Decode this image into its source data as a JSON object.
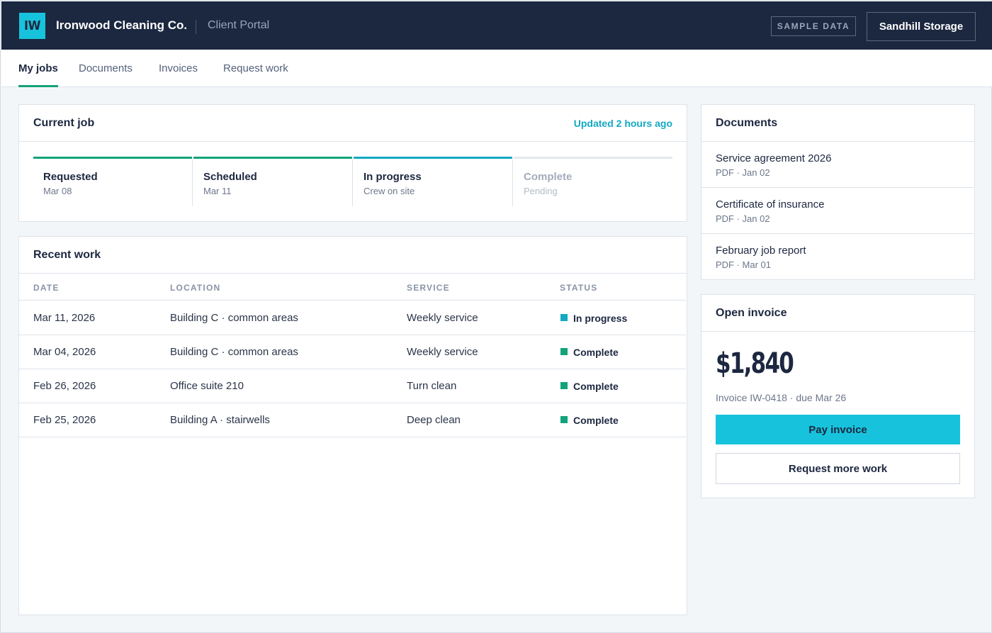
{
  "header": {
    "logo": "IW",
    "company": "Ironwood Cleaning Co.",
    "portal": "Client Portal",
    "badge": "SAMPLE DATA",
    "account": "Sandhill Storage"
  },
  "tabs": [
    {
      "label": "My jobs",
      "active": true
    },
    {
      "label": "Documents",
      "active": false
    },
    {
      "label": "Invoices",
      "active": false
    },
    {
      "label": "Request work",
      "active": false
    }
  ],
  "current_job": {
    "title": "Current job",
    "updated": "Updated 2 hours ago",
    "steps": [
      {
        "label": "Requested",
        "sub": "Mar 08",
        "state": "done",
        "color": "#12a37a"
      },
      {
        "label": "Scheduled",
        "sub": "Mar 11",
        "state": "done",
        "color": "#12a37a"
      },
      {
        "label": "In progress",
        "sub": "Crew on site",
        "state": "active",
        "color": "#13a9c2"
      },
      {
        "label": "Complete",
        "sub": "Pending",
        "state": "pending",
        "color": "#e3e8ee"
      }
    ]
  },
  "recent_work": {
    "title": "Recent work",
    "columns": [
      "DATE",
      "LOCATION",
      "SERVICE",
      "STATUS"
    ],
    "rows": [
      {
        "date": "Mar 11, 2026",
        "location": "Building C · common areas",
        "service": "Weekly service",
        "status": "In progress",
        "status_color": "#13a9c2"
      },
      {
        "date": "Mar 04, 2026",
        "location": "Building C · common areas",
        "service": "Weekly service",
        "status": "Complete",
        "status_color": "#12a37a"
      },
      {
        "date": "Feb 26, 2026",
        "location": "Office suite 210",
        "service": "Turn clean",
        "status": "Complete",
        "status_color": "#12a37a"
      },
      {
        "date": "Feb 25, 2026",
        "location": "Building A · stairwells",
        "service": "Deep clean",
        "status": "Complete",
        "status_color": "#12a37a"
      }
    ]
  },
  "documents": {
    "title": "Documents",
    "items": [
      {
        "name": "Service agreement 2026",
        "meta": "PDF · Jan 02"
      },
      {
        "name": "Certificate of insurance",
        "meta": "PDF · Jan 02"
      },
      {
        "name": "February job report",
        "meta": "PDF · Mar 01"
      }
    ]
  },
  "invoice": {
    "title": "Open invoice",
    "amount": "$1,840",
    "meta": "Invoice IW-0418 · due Mar 26",
    "pay_label": "Pay invoice",
    "more_label": "Request more work"
  }
}
